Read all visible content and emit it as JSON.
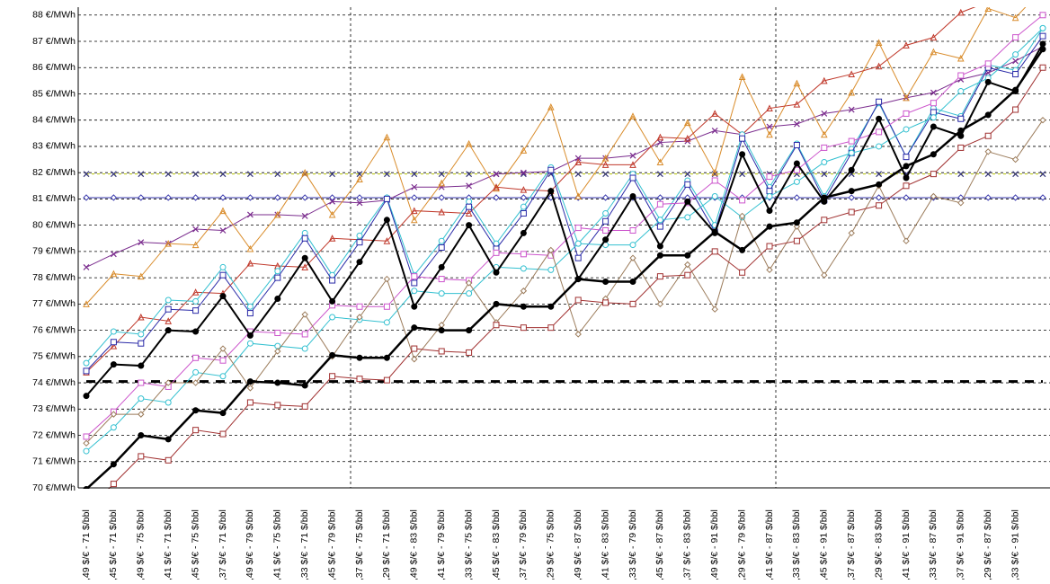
{
  "chart_data": {
    "type": "line",
    "categories": [
      ",49 $/€ - 71 $/bbl",
      ",45 $/€ - 71 $/bbl",
      ",49 $/€ - 75 $/bbl",
      ",41 $/€ - 71 $/bbl",
      ",45 $/€ - 75 $/bbl",
      ",37 $/€ - 71 $/bbl",
      ",49 $/€ - 79 $/bbl",
      ",41 $/€ - 75 $/bbl",
      ",33 $/€ - 71 $/bbl",
      ",45 $/€ - 79 $/bbl",
      ",37 $/€ - 75 $/bbl",
      ",29 $/€ - 71 $/bbl",
      ",49 $/€ - 83 $/bbl",
      ",41 $/€ - 79 $/bbl",
      ",33 $/€ - 75 $/bbl",
      ",45 $/€ - 83 $/bbl",
      ",37 $/€ - 79 $/bbl",
      ",29 $/€ - 75 $/bbl",
      ",49 $/€ - 87 $/bbl",
      ",41 $/€ - 83 $/bbl",
      ",33 $/€ - 79 $/bbl",
      ",45 $/€ - 87 $/bbl",
      ",37 $/€ - 83 $/bbl",
      ",49 $/€ - 91 $/bbl",
      ",29 $/€ - 79 $/bbl",
      ",41 $/€ - 87 $/bbl",
      ",33 $/€ - 83 $/bbl",
      ",45 $/€ - 91 $/bbl",
      ",37 $/€ - 87 $/bbl",
      ",29 $/€ - 83 $/bbl",
      ",41 $/€ - 91 $/bbl",
      ",33 $/€ - 87 $/bbl",
      ",37 $/€ - 91 $/bbl",
      ",29 $/€ - 87 $/bbl",
      ",33 $/€ - 91 $/bbl",
      null
    ],
    "ylim": [
      70,
      88.3
    ],
    "yticks": [
      {
        "value": 70,
        "label": "70 €/MWh"
      },
      {
        "value": 71,
        "label": "71 €/MWh"
      },
      {
        "value": 72,
        "label": "72 €/MWh"
      },
      {
        "value": 73,
        "label": "73 €/MWh"
      },
      {
        "value": 74,
        "label": "74 €/MWh"
      },
      {
        "value": 75,
        "label": "75 €/MWh"
      },
      {
        "value": 76,
        "label": "76 €/MWh"
      },
      {
        "value": 77,
        "label": "77 €/MWh"
      },
      {
        "value": 78,
        "label": "78 €/MWh"
      },
      {
        "value": 79,
        "label": "79 €/MWh"
      },
      {
        "value": 80,
        "label": "80 €/MWh"
      },
      {
        "value": 81,
        "label": "81 €/MWh"
      },
      {
        "value": 82,
        "label": "82 €/MWh"
      },
      {
        "value": 83,
        "label": "83 €/MWh"
      },
      {
        "value": 84,
        "label": "84 €/MWh"
      },
      {
        "value": 85,
        "label": "85 €/MWh"
      },
      {
        "value": 86,
        "label": "86 €/MWh"
      },
      {
        "value": 87,
        "label": "87 €/MWh"
      },
      {
        "value": 88,
        "label": "88 €/MWh"
      }
    ],
    "grid": true,
    "series": [
      {
        "color": "#b5c400",
        "marker_color": "#333377",
        "marker": "x",
        "dash": true,
        "values": [
          81.95,
          81.95,
          81.95,
          81.95,
          81.95,
          81.95,
          81.95,
          81.95,
          81.95,
          81.95,
          81.95,
          81.95,
          81.95,
          81.95,
          81.95,
          81.95,
          81.95,
          81.95,
          81.95,
          81.95,
          81.95,
          81.95,
          81.95,
          81.95,
          81.95,
          81.95,
          81.95,
          81.95,
          81.95,
          81.95,
          81.95,
          81.95,
          81.95,
          81.95,
          81.95,
          81.95
        ]
      },
      {
        "color": "#3333aa",
        "marker": "diamond",
        "values": [
          81.05,
          81.05,
          81.05,
          81.05,
          81.05,
          81.05,
          81.05,
          81.05,
          81.05,
          81.05,
          81.05,
          81.05,
          81.05,
          81.05,
          81.05,
          81.05,
          81.05,
          81.05,
          81.05,
          81.05,
          81.05,
          81.05,
          81.05,
          81.05,
          81.05,
          81.05,
          81.05,
          81.05,
          81.05,
          81.05,
          81.05,
          81.05,
          81.05,
          81.05,
          81.05,
          81.05
        ]
      },
      {
        "color": "#000000",
        "marker": "none",
        "dash": true,
        "width": 3,
        "values": [
          74.05,
          74.05,
          74.05,
          74.05,
          74.05,
          74.05,
          74.05,
          74.05,
          74.05,
          74.05,
          74.05,
          74.05,
          74.05,
          74.05,
          74.05,
          74.05,
          74.05,
          74.05,
          74.05,
          74.05,
          74.05,
          74.05,
          74.05,
          74.05,
          74.05,
          74.05,
          74.05,
          74.05,
          74.05,
          74.05,
          74.05,
          74.05,
          74.05,
          74.05,
          74.05,
          74.05
        ]
      },
      {
        "color": "#7b2d8e",
        "marker": "x",
        "values": [
          78.4,
          78.9,
          79.35,
          79.3,
          79.85,
          79.8,
          80.4,
          80.4,
          80.35,
          80.9,
          80.85,
          80.95,
          81.45,
          81.45,
          81.5,
          81.95,
          82.0,
          82.05,
          82.55,
          82.55,
          82.65,
          83.15,
          83.2,
          83.6,
          83.45,
          83.75,
          83.85,
          84.25,
          84.4,
          84.6,
          84.85,
          85.05,
          85.55,
          85.8,
          86.25,
          86.8
        ]
      },
      {
        "color": "#d98c2b",
        "marker": "triangle",
        "values": [
          77.0,
          78.15,
          78.05,
          79.3,
          79.25,
          80.55,
          79.1,
          80.4,
          82.0,
          80.4,
          81.75,
          83.35,
          80.2,
          81.6,
          83.1,
          81.4,
          82.85,
          84.5,
          81.1,
          82.55,
          84.15,
          82.4,
          83.9,
          82.0,
          85.65,
          83.45,
          85.4,
          83.45,
          85.05,
          86.95,
          84.85,
          86.6,
          86.35,
          88.25,
          87.9,
          89.0
        ]
      },
      {
        "color": "#c0392b",
        "marker": "triangle",
        "values": [
          74.4,
          75.4,
          76.5,
          76.35,
          77.45,
          77.4,
          78.55,
          78.45,
          78.4,
          79.5,
          79.45,
          79.4,
          80.55,
          80.5,
          80.45,
          81.45,
          81.35,
          81.3,
          82.4,
          82.3,
          82.3,
          83.35,
          83.3,
          84.25,
          83.45,
          84.45,
          84.6,
          85.5,
          85.75,
          86.05,
          86.85,
          87.15,
          88.1,
          88.5,
          89.0,
          89.0
        ]
      },
      {
        "color": "#33c0d0",
        "marker": "circle",
        "values": [
          74.75,
          75.95,
          75.85,
          77.15,
          77.1,
          78.4,
          76.9,
          78.25,
          79.7,
          78.1,
          79.6,
          81.05,
          78.1,
          79.4,
          80.9,
          79.3,
          80.7,
          82.2,
          79.3,
          80.45,
          81.95,
          80.2,
          81.7,
          80.0,
          83.45,
          81.45,
          83.1,
          81.1,
          82.9,
          84.65,
          82.6,
          84.45,
          84.15,
          86.1,
          85.9,
          87.5
        ]
      },
      {
        "color": "#2a2aa8",
        "marker": "square",
        "values": [
          74.45,
          75.55,
          75.5,
          76.8,
          76.75,
          78.1,
          76.65,
          78.0,
          79.5,
          77.9,
          79.35,
          81.0,
          77.8,
          79.15,
          80.7,
          79.1,
          80.45,
          82.1,
          78.75,
          80.15,
          81.8,
          79.95,
          81.55,
          79.75,
          83.3,
          81.3,
          83.05,
          80.95,
          82.75,
          84.7,
          82.6,
          84.3,
          84.05,
          86.0,
          85.75,
          87.2
        ]
      },
      {
        "color": "#33c0d0",
        "marker": "circle",
        "values": [
          71.4,
          72.3,
          73.4,
          73.25,
          74.4,
          74.25,
          75.5,
          75.4,
          75.3,
          76.5,
          76.4,
          76.3,
          77.5,
          77.4,
          77.4,
          78.4,
          78.35,
          78.3,
          79.3,
          79.25,
          79.25,
          80.2,
          80.3,
          81.1,
          80.3,
          81.1,
          81.65,
          82.4,
          82.75,
          83.0,
          83.65,
          84.1,
          85.1,
          85.6,
          86.5,
          87.5
        ]
      },
      {
        "color": "#cc55cc",
        "marker": "square",
        "values": [
          71.95,
          72.9,
          74.0,
          73.85,
          74.95,
          74.85,
          75.95,
          75.9,
          75.85,
          76.95,
          76.9,
          76.9,
          78.05,
          77.95,
          77.9,
          78.95,
          78.9,
          78.85,
          79.9,
          79.8,
          79.8,
          80.8,
          80.85,
          81.7,
          80.95,
          81.85,
          82.1,
          82.95,
          83.2,
          83.55,
          84.25,
          84.65,
          85.7,
          86.15,
          87.15,
          88.0
        ]
      },
      {
        "color": "#9b7b5a",
        "marker": "diamond",
        "values": [
          71.7,
          72.8,
          72.8,
          74.0,
          74.0,
          75.3,
          73.8,
          75.2,
          76.6,
          75.0,
          76.5,
          77.95,
          74.9,
          76.2,
          77.8,
          76.3,
          77.5,
          79.05,
          75.85,
          77.2,
          78.75,
          77.0,
          78.5,
          76.8,
          80.35,
          78.3,
          79.95,
          78.1,
          79.7,
          81.5,
          79.4,
          81.1,
          80.85,
          82.8,
          82.5,
          84.0
        ]
      },
      {
        "color": "#000000",
        "marker": "circle",
        "width": 2,
        "values": [
          73.5,
          74.7,
          74.65,
          76.0,
          75.95,
          77.3,
          75.8,
          77.2,
          78.75,
          77.1,
          78.6,
          80.2,
          76.9,
          78.4,
          80.0,
          78.2,
          79.7,
          81.3,
          77.95,
          79.45,
          81.1,
          79.2,
          80.9,
          79.7,
          82.7,
          80.55,
          82.35,
          80.9,
          82.1,
          84.05,
          81.8,
          83.75,
          83.4,
          85.45,
          85.1,
          86.9
        ]
      },
      {
        "color": "#000000",
        "marker": "circle",
        "width": 2.5,
        "values": [
          69.95,
          70.9,
          72.0,
          71.85,
          72.95,
          72.85,
          74.05,
          74.0,
          73.9,
          75.05,
          74.95,
          74.95,
          76.1,
          76.0,
          76.0,
          77.0,
          76.9,
          76.9,
          77.95,
          77.85,
          77.85,
          78.85,
          78.85,
          79.75,
          79.05,
          79.95,
          80.1,
          81.05,
          81.3,
          81.55,
          82.25,
          82.7,
          83.6,
          84.2,
          85.15,
          86.7
        ]
      },
      {
        "color": "#a03030",
        "marker": "square",
        "values": [
          69.1,
          70.15,
          71.2,
          71.05,
          72.2,
          72.05,
          73.25,
          73.15,
          73.1,
          74.25,
          74.15,
          74.1,
          75.3,
          75.2,
          75.15,
          76.2,
          76.1,
          76.1,
          77.15,
          77.05,
          77.0,
          78.05,
          78.1,
          79.0,
          78.2,
          79.2,
          79.4,
          80.2,
          80.5,
          80.75,
          81.5,
          81.95,
          82.95,
          83.4,
          84.4,
          86.0
        ]
      }
    ]
  }
}
